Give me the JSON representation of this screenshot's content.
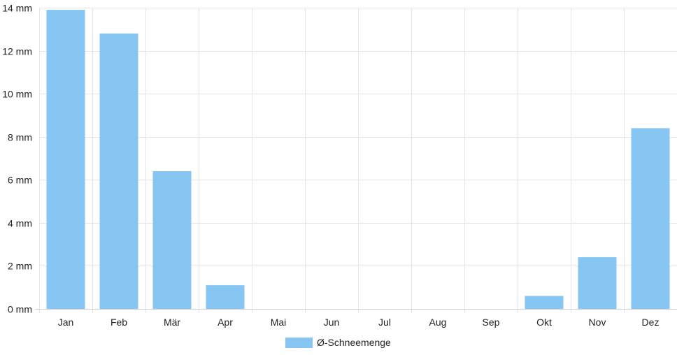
{
  "chart_data": {
    "type": "bar",
    "categories": [
      "Jan",
      "Feb",
      "Mär",
      "Apr",
      "Mai",
      "Jun",
      "Jul",
      "Aug",
      "Sep",
      "Okt",
      "Nov",
      "Dez"
    ],
    "series": [
      {
        "name": "Ø-Schneemenge",
        "values": [
          13.9,
          12.8,
          6.4,
          1.1,
          0,
          0,
          0,
          0,
          0,
          0.6,
          2.4,
          8.4
        ],
        "color": "#87c5f2"
      }
    ],
    "ylim": [
      0,
      14
    ],
    "yticks": [
      0,
      2,
      4,
      6,
      8,
      10,
      12,
      14
    ],
    "ytick_labels": [
      "0 mm",
      "2 mm",
      "4 mm",
      "6 mm",
      "8 mm",
      "10 mm",
      "12 mm",
      "14 mm"
    ],
    "grid": true,
    "legend_position": "bottom-center"
  }
}
